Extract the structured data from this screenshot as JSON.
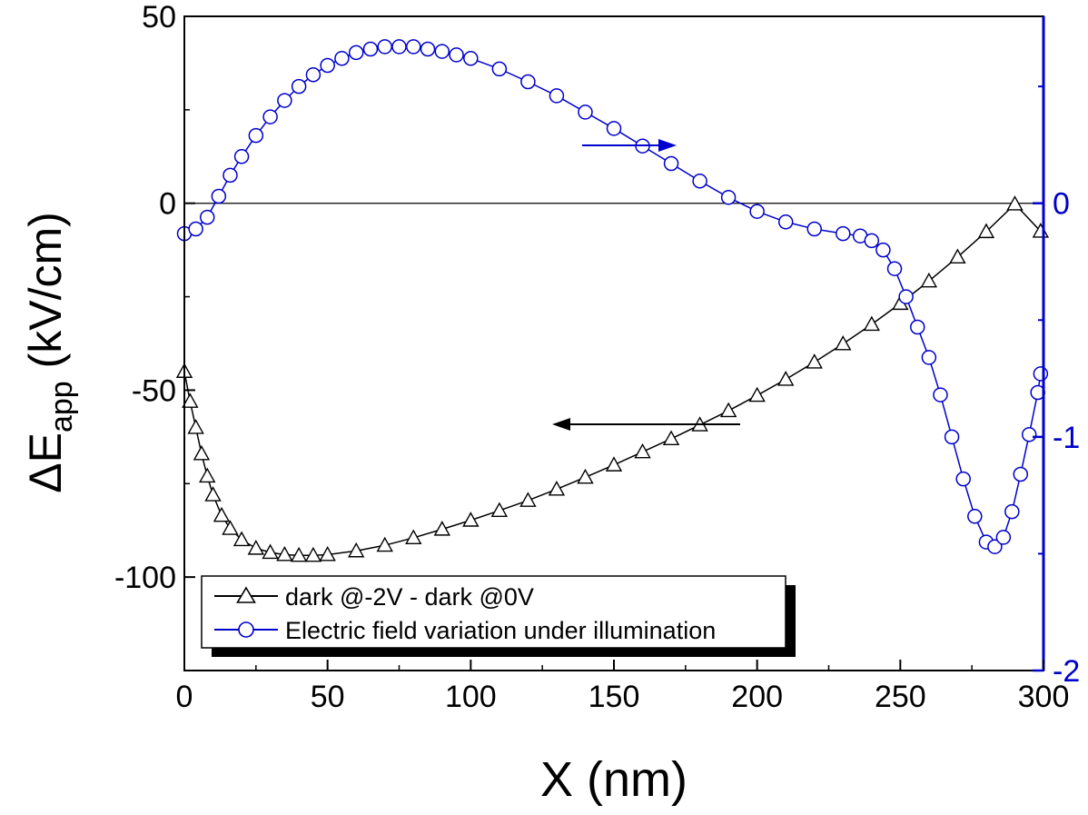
{
  "chart_data": {
    "type": "scatter",
    "xlabel": "X (nm)",
    "ylabel": {
      "main": "ΔE",
      "sub": "app",
      "unit": " (kV/cm)"
    },
    "xlim": [
      0,
      300
    ],
    "ylim_left": [
      -125,
      50
    ],
    "ylim_right": [
      -2,
      0.8
    ],
    "x_ticks": [
      0,
      50,
      100,
      150,
      200,
      250,
      300
    ],
    "y_ticks_left": [
      -100,
      -50,
      0,
      50
    ],
    "y_ticks_right": [
      -2,
      -1,
      0
    ],
    "colors": {
      "dark": "#000000",
      "illumination": "#0000cc"
    },
    "series": [
      {
        "name": "dark @-2V - dark @0V",
        "axis": "left",
        "marker": "triangle",
        "x": [
          0,
          2,
          4,
          6,
          8,
          10,
          13,
          16,
          20,
          25,
          30,
          35,
          40,
          45,
          50,
          60,
          70,
          80,
          90,
          100,
          110,
          120,
          130,
          140,
          150,
          160,
          170,
          180,
          190,
          200,
          210,
          220,
          230,
          240,
          250,
          260,
          270,
          280,
          290,
          299
        ],
        "y": [
          -45,
          -53,
          -60,
          -67,
          -73,
          -78,
          -83.5,
          -87,
          -90,
          -92.3,
          -93.4,
          -94,
          -94.2,
          -94.2,
          -94,
          -93,
          -91.5,
          -89.5,
          -87.2,
          -84.8,
          -82.2,
          -79.5,
          -76.5,
          -73.3,
          -70,
          -66.5,
          -63,
          -59.3,
          -55.5,
          -51.4,
          -47.1,
          -42.5,
          -37.6,
          -32.4,
          -26.8,
          -20.8,
          -14.4,
          -7.6,
          -0.2,
          -7.5
        ]
      },
      {
        "name": "Electric field variation under illumination",
        "axis": "right",
        "marker": "circle",
        "x": [
          0,
          4,
          8,
          12,
          16,
          20,
          25,
          30,
          35,
          40,
          45,
          50,
          55,
          60,
          65,
          70,
          75,
          80,
          85,
          90,
          95,
          100,
          110,
          120,
          130,
          140,
          150,
          160,
          170,
          180,
          190,
          200,
          210,
          220,
          230,
          236,
          240,
          244,
          248,
          252,
          256,
          260,
          264,
          268,
          272,
          276,
          280,
          283,
          286,
          289,
          292,
          295,
          298,
          299
        ],
        "y": [
          -0.13,
          -0.11,
          -0.06,
          0.03,
          0.12,
          0.2,
          0.29,
          0.37,
          0.44,
          0.5,
          0.55,
          0.59,
          0.62,
          0.645,
          0.66,
          0.67,
          0.67,
          0.67,
          0.66,
          0.65,
          0.635,
          0.62,
          0.575,
          0.52,
          0.46,
          0.39,
          0.32,
          0.245,
          0.17,
          0.095,
          0.025,
          -0.035,
          -0.08,
          -0.11,
          -0.13,
          -0.14,
          -0.16,
          -0.2,
          -0.28,
          -0.4,
          -0.53,
          -0.66,
          -0.82,
          -1.0,
          -1.18,
          -1.34,
          -1.45,
          -1.47,
          -1.43,
          -1.32,
          -1.16,
          -0.99,
          -0.81,
          -0.73
        ]
      }
    ],
    "legend_placement": "bottom-center",
    "annotations": [
      {
        "type": "arrow",
        "direction": "right",
        "points_to": "right axis"
      },
      {
        "type": "arrow",
        "direction": "left",
        "points_to": "left axis"
      }
    ]
  }
}
